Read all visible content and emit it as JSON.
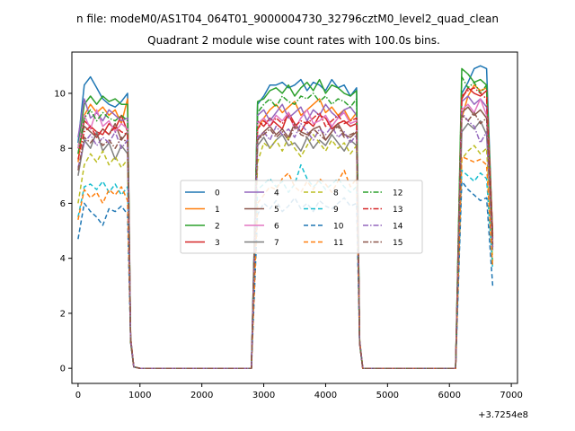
{
  "suptitle": "n file: modeM0/AS1T04_064T01_9000004730_32796cztM0_level2_quad_clean",
  "chart_data": {
    "type": "line",
    "title": "Quadrant 2 module wise count rates with 100.0s bins.",
    "xlabel": "",
    "ylabel": "",
    "x_offset_label": "+3.7254e8",
    "xlim": [
      -100,
      7100
    ],
    "ylim": [
      -0.55,
      11.5
    ],
    "xticks": [
      0,
      1000,
      2000,
      3000,
      4000,
      5000,
      6000,
      7000
    ],
    "yticks": [
      0,
      2,
      4,
      6,
      8,
      10
    ],
    "grid": false,
    "legend_position": "center",
    "x": [
      0,
      100,
      200,
      300,
      400,
      500,
      600,
      700,
      800,
      850,
      900,
      1000,
      1100,
      1200,
      1300,
      1400,
      1500,
      1600,
      1700,
      1800,
      1900,
      2000,
      2100,
      2200,
      2300,
      2400,
      2500,
      2600,
      2700,
      2800,
      2900,
      3000,
      3100,
      3200,
      3300,
      3400,
      3500,
      3600,
      3700,
      3800,
      3900,
      4000,
      4100,
      4200,
      4300,
      4400,
      4500,
      4550,
      4600,
      4700,
      4800,
      4900,
      5000,
      5100,
      5200,
      5300,
      5400,
      5500,
      5600,
      5700,
      5800,
      5900,
      6000,
      6100,
      6200,
      6300,
      6400,
      6500,
      6600,
      6700
    ],
    "series": [
      {
        "name": "0",
        "color": "#1f77b4",
        "style": "solid",
        "active": [
          8.2,
          10.3,
          10.6,
          10.2,
          9.8,
          9.6,
          9.5,
          9.7,
          10.0
        ],
        "mid": [
          9.6,
          9.9,
          10.3,
          10.3,
          10.4,
          10.2,
          10.3,
          10.5,
          10.1,
          10.4,
          10.3,
          10.1,
          10.5,
          10.2,
          10.3,
          9.9,
          10.2
        ],
        "tail": [
          10.0,
          10.4,
          10.9,
          11.0,
          10.9,
          4.7
        ]
      },
      {
        "name": "1",
        "color": "#ff7f0e",
        "style": "solid",
        "active": [
          7.5,
          9.2,
          9.6,
          9.3,
          9.5,
          9.2,
          9.4,
          8.9,
          9.8
        ],
        "mid": [
          8.7,
          9.1,
          9.4,
          9.6,
          9.3,
          9.5,
          9.7,
          9.2,
          9.4,
          9.6,
          9.8,
          9.3,
          9.5,
          9.2,
          9.4,
          9.0,
          9.3
        ],
        "tail": [
          9.1,
          9.9,
          10.3,
          10.1,
          10.2,
          4.6
        ]
      },
      {
        "name": "2",
        "color": "#2ca02c",
        "style": "solid",
        "active": [
          8.0,
          9.6,
          9.9,
          9.6,
          9.9,
          9.7,
          9.8,
          9.6,
          9.6
        ],
        "mid": [
          9.7,
          9.8,
          10.1,
          10.2,
          10.0,
          10.3,
          9.9,
          10.2,
          10.4,
          10.1,
          10.5,
          10.0,
          10.3,
          10.2,
          10.0,
          9.9,
          10.1
        ],
        "tail": [
          10.9,
          10.7,
          10.4,
          10.5,
          10.3,
          4.8
        ]
      },
      {
        "name": "3",
        "color": "#d62728",
        "style": "solid",
        "active": [
          7.8,
          9.0,
          8.8,
          8.6,
          8.5,
          8.9,
          8.7,
          9.2,
          8.6
        ],
        "mid": [
          9.0,
          8.8,
          9.1,
          8.9,
          8.7,
          9.3,
          8.9,
          8.6,
          9.0,
          8.8,
          9.2,
          9.1,
          8.7,
          8.9,
          9.0,
          8.8,
          8.9
        ],
        "tail": [
          9.8,
          10.2,
          10.0,
          9.9,
          10.1,
          4.9
        ]
      },
      {
        "name": "4",
        "color": "#9467bd",
        "style": "solid",
        "active": [
          8.4,
          9.8,
          9.1,
          9.3,
          9.0,
          9.4,
          9.2,
          9.0,
          9.1
        ],
        "mid": [
          9.2,
          9.4,
          9.0,
          9.3,
          9.6,
          9.1,
          9.3,
          9.5,
          9.0,
          9.4,
          9.2,
          9.6,
          9.3,
          9.1,
          9.4,
          9.5,
          9.2
        ],
        "tail": [
          9.7,
          9.9,
          9.6,
          9.8,
          9.5,
          4.5
        ]
      },
      {
        "name": "5",
        "color": "#8c564b",
        "style": "solid",
        "active": [
          8.0,
          8.8,
          8.6,
          8.4,
          8.7,
          8.5,
          8.9,
          8.3,
          8.6
        ],
        "mid": [
          8.3,
          8.6,
          8.8,
          8.5,
          8.7,
          8.4,
          8.9,
          8.6,
          8.5,
          8.7,
          8.8,
          8.3,
          8.6,
          8.9,
          8.5,
          8.4,
          8.6
        ],
        "tail": [
          9.3,
          9.5,
          9.2,
          9.4,
          9.1,
          4.4
        ]
      },
      {
        "name": "6",
        "color": "#e377c2",
        "style": "solid",
        "active": [
          8.0,
          9.2,
          8.7,
          9.4,
          8.8,
          9.0,
          8.6,
          8.9,
          8.7
        ],
        "mid": [
          8.9,
          9.1,
          8.8,
          9.2,
          9.0,
          9.3,
          8.7,
          9.1,
          9.4,
          8.9,
          9.0,
          9.2,
          8.8,
          9.1,
          9.3,
          8.9,
          9.0
        ],
        "tail": [
          9.4,
          9.6,
          9.3,
          9.8,
          9.2,
          4.6
        ]
      },
      {
        "name": "7",
        "color": "#7f7f7f",
        "style": "solid",
        "active": [
          7.0,
          8.3,
          8.0,
          8.6,
          7.9,
          8.2,
          7.6,
          8.1,
          7.8
        ],
        "mid": [
          8.1,
          8.4,
          8.0,
          8.3,
          8.5,
          8.1,
          8.2,
          7.9,
          8.4,
          8.0,
          8.3,
          8.1,
          8.5,
          8.2,
          7.9,
          8.3,
          8.1
        ],
        "tail": [
          8.6,
          8.9,
          8.7,
          9.0,
          8.5,
          4.3
        ]
      },
      {
        "name": "8",
        "color": "#bcbd22",
        "style": "dashed",
        "active": [
          6.0,
          7.4,
          7.8,
          7.5,
          7.9,
          7.4,
          7.7,
          7.3,
          7.6
        ],
        "mid": [
          7.5,
          8.2,
          8.0,
          8.3,
          7.9,
          8.4,
          8.0,
          7.7,
          8.1,
          8.5,
          8.2,
          7.9,
          8.3,
          8.0,
          8.2,
          7.8,
          8.1
        ],
        "tail": [
          7.6,
          7.9,
          8.1,
          7.8,
          8.0,
          3.9
        ]
      },
      {
        "name": "9",
        "color": "#17becf",
        "style": "dashed",
        "active": [
          5.5,
          6.6,
          6.7,
          6.5,
          6.8,
          6.4,
          6.7,
          6.3,
          6.6
        ],
        "mid": [
          6.5,
          6.7,
          6.9,
          6.6,
          6.8,
          6.4,
          6.7,
          7.4,
          6.9,
          6.6,
          6.8,
          6.5,
          6.7,
          6.9,
          6.6,
          6.4,
          6.6
        ],
        "tail": [
          7.2,
          7.0,
          6.8,
          7.1,
          6.9,
          3.6
        ]
      },
      {
        "name": "10",
        "color": "#1f77b4",
        "style": "dashed",
        "active": [
          4.7,
          6.0,
          5.7,
          5.5,
          5.2,
          5.8,
          5.7,
          5.9,
          5.6
        ],
        "mid": [
          5.6,
          6.0,
          5.8,
          6.1,
          5.7,
          5.9,
          6.2,
          5.8,
          6.0,
          5.7,
          6.1,
          5.9,
          5.8,
          6.0,
          6.2,
          5.9,
          6.0
        ],
        "tail": [
          6.8,
          6.5,
          6.3,
          6.1,
          6.2,
          3.0
        ]
      },
      {
        "name": "11",
        "color": "#ff7f0e",
        "style": "dashed",
        "active": [
          5.4,
          6.5,
          6.2,
          6.4,
          6.0,
          6.5,
          6.3,
          6.6,
          6.1
        ],
        "mid": [
          6.0,
          6.3,
          6.6,
          6.5,
          6.9,
          7.1,
          6.6,
          6.4,
          6.8,
          6.5,
          6.9,
          6.7,
          6.4,
          6.8,
          7.2,
          6.6,
          6.9
        ],
        "tail": [
          7.7,
          7.6,
          7.5,
          7.6,
          7.4,
          3.7
        ]
      },
      {
        "name": "12",
        "color": "#2ca02c",
        "style": "dashdot",
        "active": [
          7.8,
          9.1,
          9.4,
          9.0,
          9.3,
          9.1,
          9.0,
          9.2,
          9.0
        ],
        "mid": [
          9.3,
          9.6,
          9.8,
          9.5,
          9.9,
          9.7,
          9.6,
          9.9,
          9.8,
          10.0,
          9.7,
          9.9,
          9.6,
          9.8,
          9.7,
          9.5,
          9.8
        ],
        "tail": [
          10.6,
          10.2,
          10.4,
          10.0,
          10.3,
          4.8
        ]
      },
      {
        "name": "13",
        "color": "#d62728",
        "style": "dashdot",
        "active": [
          7.6,
          8.6,
          8.8,
          8.4,
          8.7,
          8.5,
          8.8,
          8.6,
          8.5
        ],
        "mid": [
          8.7,
          9.0,
          8.8,
          9.1,
          8.9,
          9.2,
          8.8,
          9.0,
          8.9,
          9.1,
          9.3,
          8.8,
          9.0,
          9.2,
          8.9,
          9.0,
          9.1
        ],
        "tail": [
          9.9,
          10.1,
          10.2,
          10.0,
          9.8,
          4.7
        ]
      },
      {
        "name": "14",
        "color": "#9467bd",
        "style": "dashdot",
        "active": [
          7.3,
          8.2,
          8.5,
          8.1,
          8.4,
          8.2,
          8.6,
          8.0,
          8.3
        ],
        "mid": [
          8.4,
          8.6,
          8.3,
          8.8,
          8.5,
          8.7,
          8.4,
          8.9,
          8.6,
          8.3,
          8.7,
          8.5,
          8.8,
          8.4,
          8.6,
          8.2,
          8.5
        ],
        "tail": [
          9.3,
          9.0,
          8.8,
          8.2,
          8.6,
          4.4
        ]
      },
      {
        "name": "15",
        "color": "#8c564b",
        "style": "dashdot",
        "active": [
          7.2,
          8.4,
          8.2,
          8.5,
          8.1,
          8.3,
          8.0,
          8.4,
          8.2
        ],
        "mid": [
          8.3,
          8.5,
          8.7,
          8.4,
          8.6,
          8.3,
          8.8,
          8.5,
          8.4,
          8.7,
          8.5,
          8.3,
          8.6,
          8.8,
          8.4,
          8.5,
          8.6
        ],
        "tail": [
          9.2,
          9.0,
          9.3,
          8.9,
          9.1,
          4.5
        ]
      }
    ],
    "segment_tails": {
      "drop1": [
        [
          850,
          0.95
        ],
        [
          900,
          0.05
        ]
      ],
      "rise2_start": [
        2900,
        0.0
      ],
      "drop2": [
        [
          4550,
          0.9
        ],
        [
          4600,
          0.0
        ]
      ],
      "rise3_start": [
        6100,
        0.0
      ]
    }
  }
}
